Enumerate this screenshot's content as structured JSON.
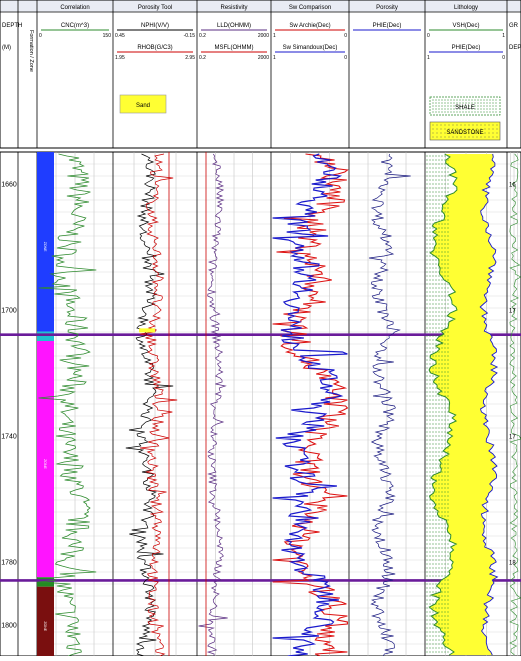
{
  "header": {
    "tracks": [
      {
        "title": "",
        "lines": [
          {
            "label": "DEPTH",
            "color": "#000000"
          },
          {
            "label": "(M)",
            "color": "#000000"
          }
        ]
      },
      {
        "title": "",
        "lines": []
      },
      {
        "title": "Correlation",
        "lines": [
          {
            "label": "CNC(m^3)",
            "color": "#2e8b2e",
            "min": "0",
            "max": "150"
          }
        ]
      },
      {
        "title": "Porosity Tool",
        "lines": [
          {
            "label": "NPHI(V/V)",
            "color": "#000000",
            "min": "0.45",
            "max": "-0.15"
          },
          {
            "label": "RHOB(G/C3)",
            "color": "#cc0000",
            "min": "1.95",
            "max": "2.95"
          }
        ]
      },
      {
        "title": "Resistivity",
        "lines": [
          {
            "label": "LLD(OHMM)",
            "color": "#5a2d82",
            "min": "0.2",
            "max": "2000"
          },
          {
            "label": "MSFL(OHMM)",
            "color": "#cc0000",
            "min": "0.2",
            "max": "2000"
          }
        ]
      },
      {
        "title": "Sw Comparison",
        "lines": [
          {
            "label": "Sw Archie(Dec)",
            "color": "#cc0000",
            "min": "1",
            "max": "0"
          },
          {
            "label": "Sw Simandoux(Dec)",
            "color": "#1a1acc",
            "min": "1",
            "max": "0"
          }
        ]
      },
      {
        "title": "Porosity",
        "lines": [
          {
            "label": "PHIE(Dec)",
            "color": "#1a1acc"
          }
        ]
      },
      {
        "title": "Lithology",
        "lines": [
          {
            "label": "VSH(Dec)",
            "color": "#2e8b2e",
            "min": "0",
            "max": "1"
          },
          {
            "label": "PHIE(Dec)",
            "color": "#1a1acc",
            "min": "1",
            "max": "0"
          }
        ]
      },
      {
        "title": "",
        "lines": [
          {
            "label": "GR",
            "color": "#000000"
          },
          {
            "label": "DEP",
            "color": "#000000"
          }
        ]
      }
    ],
    "vertical_label": "Formation / Zone",
    "legend_sand": "Sand",
    "legend_shale": "SHALE",
    "legend_sandstone": "SANDSTONE"
  },
  "chart_data": {
    "type": "well-log",
    "depth_range": [
      1650,
      1810
    ],
    "depth_ticks": [
      1660,
      1700,
      1740,
      1780,
      1800
    ],
    "zone_tags": [
      "ZONE",
      "ZONE",
      "ZONE"
    ],
    "right_depth_labels": [
      "16",
      "17",
      "17",
      "18"
    ],
    "zones": [
      {
        "name": "",
        "top": 1650,
        "bottom": 1707,
        "color": "#1f3dff"
      },
      {
        "name": "",
        "top": 1707,
        "bottom": 1710,
        "color": "#20c0d0"
      },
      {
        "name": "",
        "top": 1710,
        "bottom": 1785,
        "color": "#ff14ff"
      },
      {
        "name": "",
        "top": 1785,
        "bottom": 1788,
        "color": "#228b22"
      },
      {
        "name": "",
        "top": 1788,
        "bottom": 1810,
        "color": "#7a0f0f"
      }
    ],
    "markers": [
      1708,
      1786
    ]
  }
}
